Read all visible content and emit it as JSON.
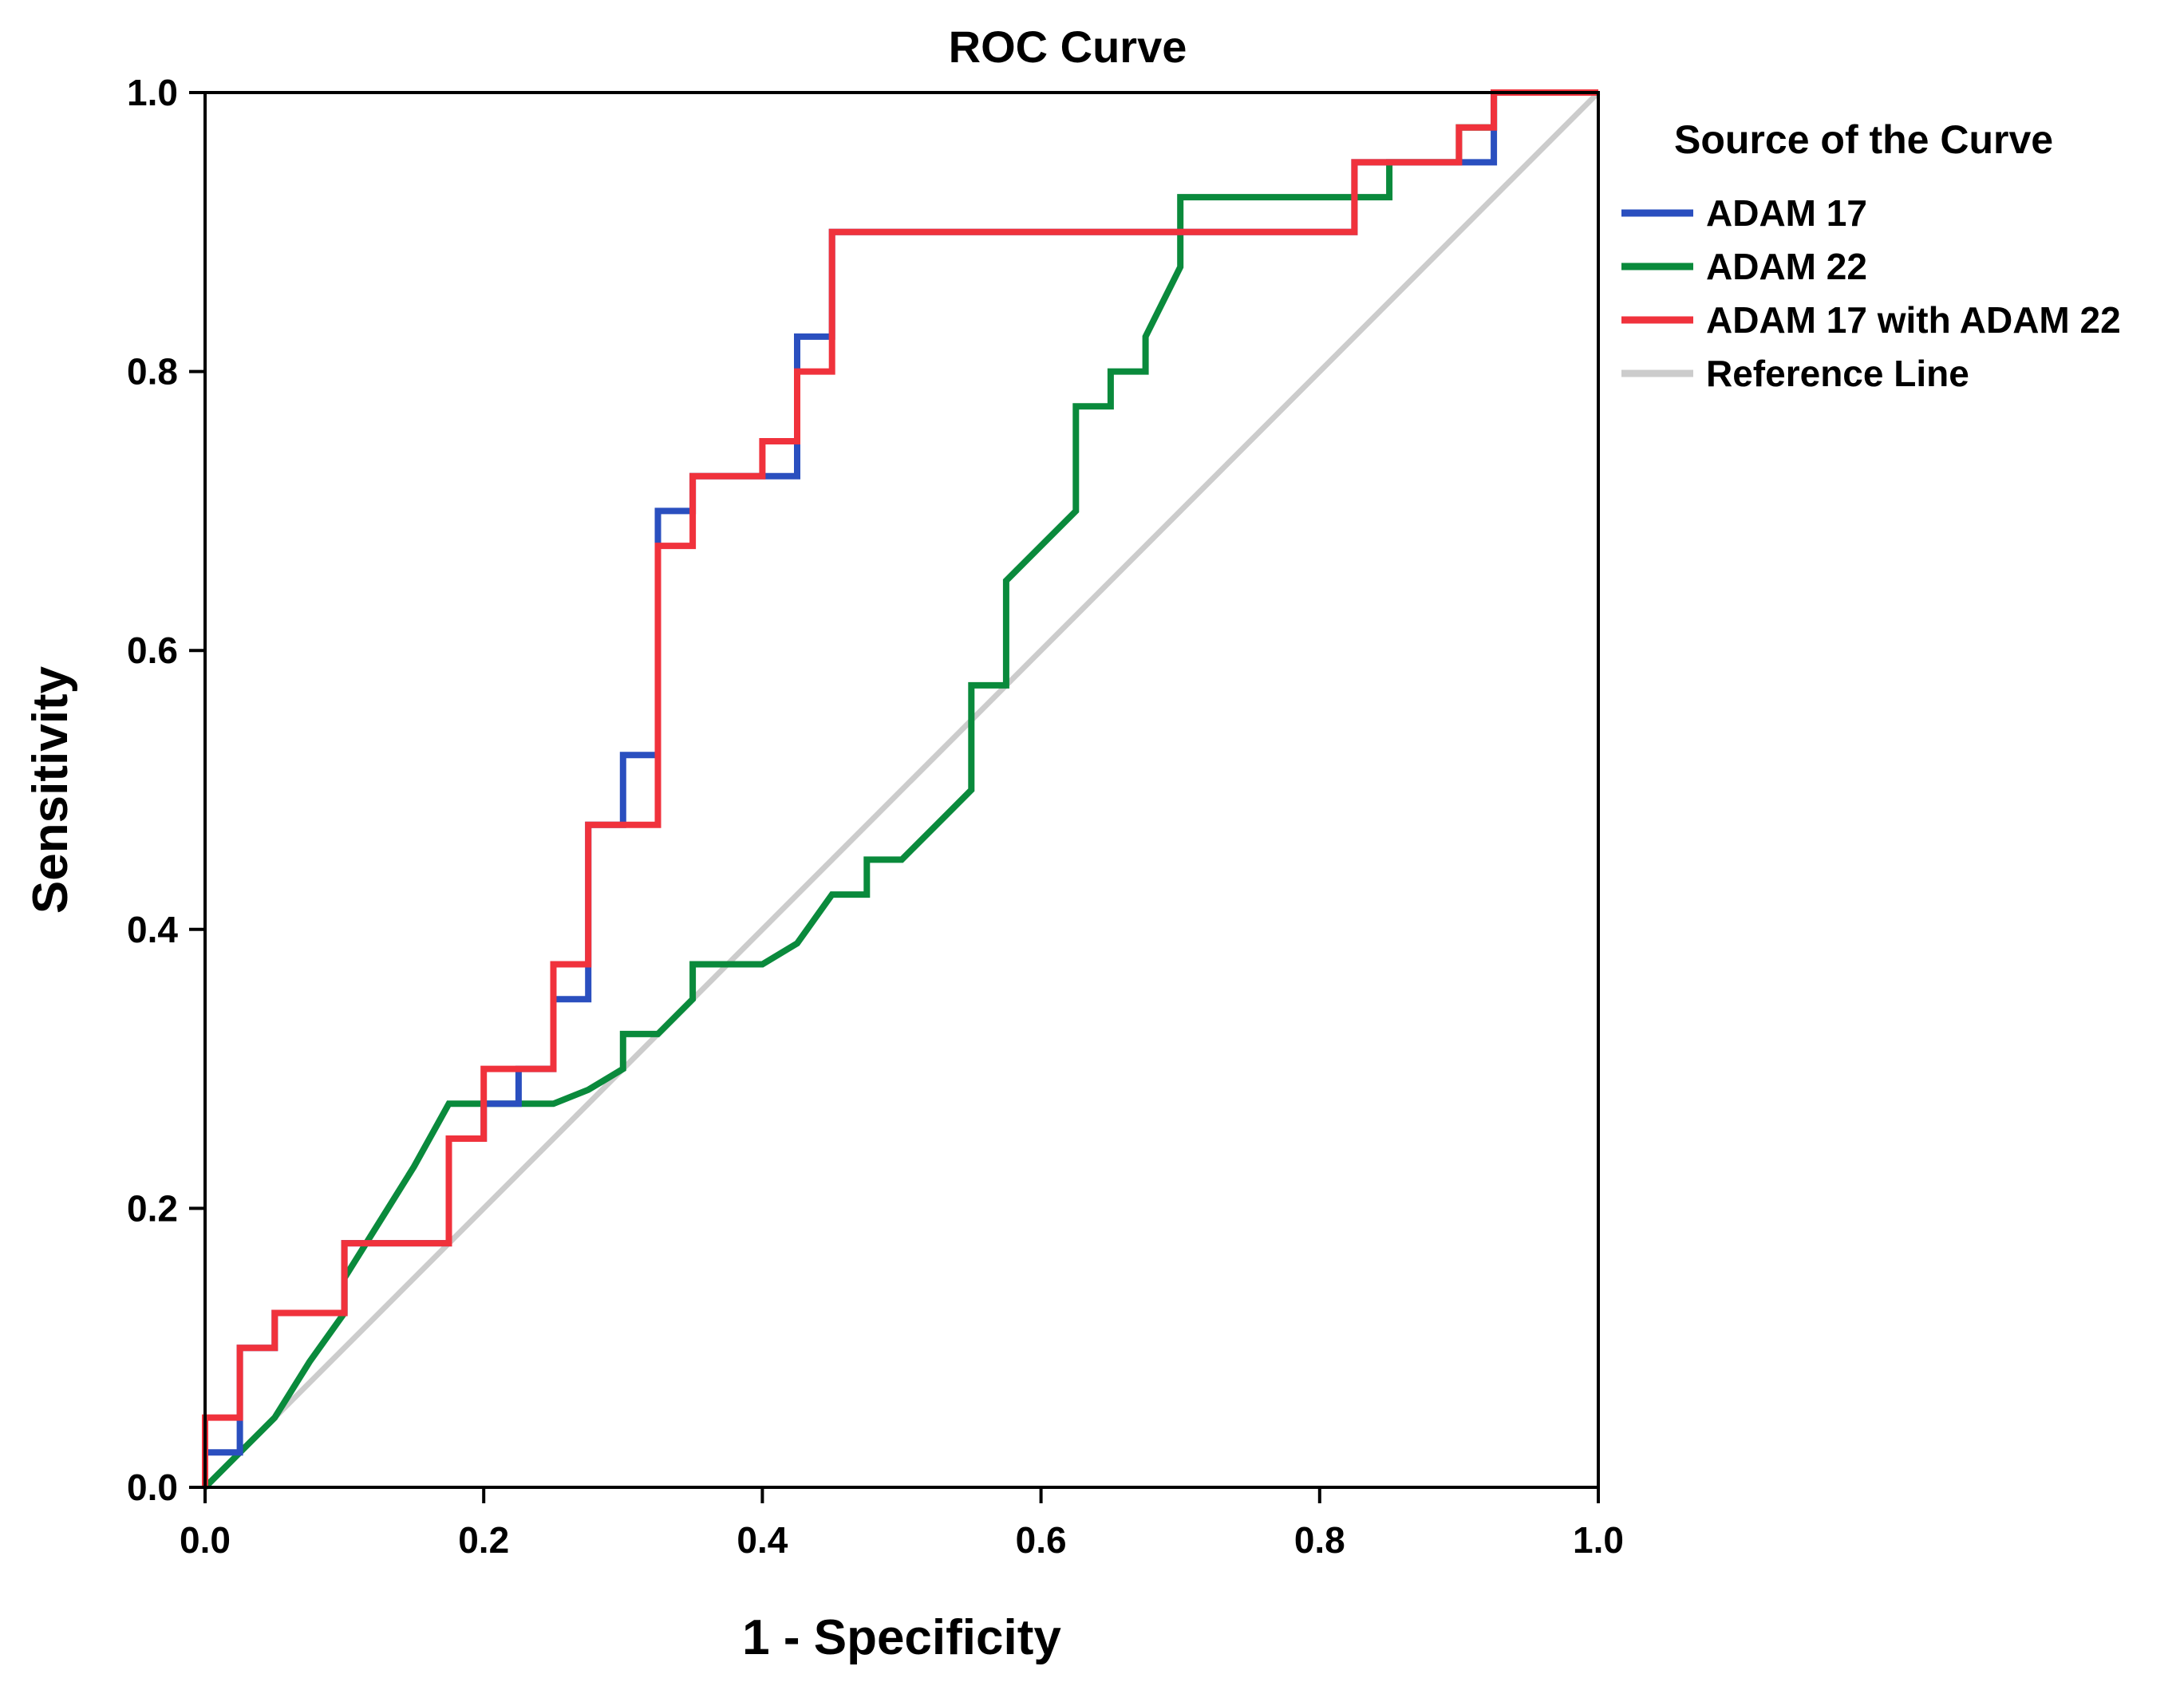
{
  "chart_data": {
    "type": "line",
    "title": "ROC Curve",
    "xlabel": "1 - Specificity",
    "ylabel": "Sensitivity",
    "xlim": [
      0,
      1
    ],
    "ylim": [
      0,
      1
    ],
    "x_ticks": [
      0.0,
      0.2,
      0.4,
      0.6,
      0.8,
      1.0
    ],
    "x_tick_labels": [
      "0.0",
      "0.2",
      "0.4",
      "0.6",
      "0.8",
      "1.0"
    ],
    "y_ticks": [
      0.0,
      0.2,
      0.4,
      0.6,
      0.8,
      1.0
    ],
    "y_tick_labels": [
      "0.0",
      "0.2",
      "0.4",
      "0.6",
      "0.8",
      "1.0"
    ],
    "grid": false,
    "legend": {
      "title": "Source of the Curve",
      "position": "right"
    },
    "series": [
      {
        "name": "Reference Line",
        "color": "#cccccc",
        "points": [
          [
            0,
            0
          ],
          [
            1,
            1
          ]
        ]
      },
      {
        "name": "ADAM 22",
        "color": "#0a8a3c",
        "points": [
          [
            0,
            0
          ],
          [
            0.025,
            0.025
          ],
          [
            0.05,
            0.05
          ],
          [
            0.075,
            0.09
          ],
          [
            0.1,
            0.125
          ],
          [
            0.1,
            0.15
          ],
          [
            0.125,
            0.19
          ],
          [
            0.15,
            0.23
          ],
          [
            0.175,
            0.275
          ],
          [
            0.2,
            0.275
          ],
          [
            0.225,
            0.275
          ],
          [
            0.25,
            0.275
          ],
          [
            0.275,
            0.285
          ],
          [
            0.3,
            0.3
          ],
          [
            0.3,
            0.325
          ],
          [
            0.325,
            0.325
          ],
          [
            0.35,
            0.35
          ],
          [
            0.35,
            0.375
          ],
          [
            0.375,
            0.375
          ],
          [
            0.4,
            0.375
          ],
          [
            0.425,
            0.39
          ],
          [
            0.45,
            0.425
          ],
          [
            0.475,
            0.425
          ],
          [
            0.475,
            0.45
          ],
          [
            0.5,
            0.45
          ],
          [
            0.525,
            0.475
          ],
          [
            0.55,
            0.5
          ],
          [
            0.55,
            0.575
          ],
          [
            0.575,
            0.575
          ],
          [
            0.575,
            0.65
          ],
          [
            0.6,
            0.675
          ],
          [
            0.625,
            0.7
          ],
          [
            0.625,
            0.775
          ],
          [
            0.65,
            0.775
          ],
          [
            0.65,
            0.8
          ],
          [
            0.675,
            0.8
          ],
          [
            0.675,
            0.825
          ],
          [
            0.7,
            0.875
          ],
          [
            0.7,
            0.925
          ],
          [
            0.725,
            0.925
          ],
          [
            0.85,
            0.925
          ],
          [
            0.85,
            0.95
          ],
          [
            0.9,
            0.95
          ],
          [
            0.9,
            0.975
          ],
          [
            0.925,
            0.975
          ],
          [
            0.925,
            1.0
          ],
          [
            1.0,
            1.0
          ]
        ]
      },
      {
        "name": "ADAM 17",
        "color": "#2a4fbf",
        "points": [
          [
            0,
            0
          ],
          [
            0,
            0.025
          ],
          [
            0.025,
            0.025
          ],
          [
            0.025,
            0.1
          ],
          [
            0.05,
            0.1
          ],
          [
            0.05,
            0.125
          ],
          [
            0.1,
            0.125
          ],
          [
            0.1,
            0.175
          ],
          [
            0.175,
            0.175
          ],
          [
            0.175,
            0.25
          ],
          [
            0.2,
            0.25
          ],
          [
            0.2,
            0.275
          ],
          [
            0.225,
            0.275
          ],
          [
            0.225,
            0.3
          ],
          [
            0.25,
            0.3
          ],
          [
            0.25,
            0.35
          ],
          [
            0.275,
            0.35
          ],
          [
            0.275,
            0.475
          ],
          [
            0.3,
            0.475
          ],
          [
            0.3,
            0.525
          ],
          [
            0.325,
            0.525
          ],
          [
            0.325,
            0.7
          ],
          [
            0.35,
            0.7
          ],
          [
            0.35,
            0.725
          ],
          [
            0.4,
            0.725
          ],
          [
            0.425,
            0.725
          ],
          [
            0.425,
            0.825
          ],
          [
            0.45,
            0.825
          ],
          [
            0.45,
            0.9
          ],
          [
            0.825,
            0.9
          ],
          [
            0.825,
            0.95
          ],
          [
            0.9,
            0.95
          ],
          [
            0.925,
            0.95
          ],
          [
            0.925,
            1.0
          ],
          [
            1.0,
            1.0
          ]
        ]
      },
      {
        "name": "ADAM 17 with ADAM 22",
        "color": "#f0323c",
        "points": [
          [
            0,
            0
          ],
          [
            0,
            0.05
          ],
          [
            0.025,
            0.05
          ],
          [
            0.025,
            0.1
          ],
          [
            0.05,
            0.1
          ],
          [
            0.05,
            0.125
          ],
          [
            0.1,
            0.125
          ],
          [
            0.1,
            0.175
          ],
          [
            0.175,
            0.175
          ],
          [
            0.175,
            0.25
          ],
          [
            0.2,
            0.25
          ],
          [
            0.2,
            0.3
          ],
          [
            0.25,
            0.3
          ],
          [
            0.25,
            0.375
          ],
          [
            0.275,
            0.375
          ],
          [
            0.275,
            0.475
          ],
          [
            0.325,
            0.475
          ],
          [
            0.325,
            0.675
          ],
          [
            0.35,
            0.675
          ],
          [
            0.35,
            0.725
          ],
          [
            0.4,
            0.725
          ],
          [
            0.4,
            0.75
          ],
          [
            0.425,
            0.75
          ],
          [
            0.425,
            0.8
          ],
          [
            0.45,
            0.8
          ],
          [
            0.45,
            0.9
          ],
          [
            0.825,
            0.9
          ],
          [
            0.825,
            0.95
          ],
          [
            0.9,
            0.95
          ],
          [
            0.9,
            0.975
          ],
          [
            0.925,
            0.975
          ],
          [
            0.925,
            1.0
          ],
          [
            1.0,
            1.0
          ]
        ]
      }
    ],
    "legend_order": [
      "ADAM 17",
      "ADAM 22",
      "ADAM 17 with ADAM 22",
      "Reference Line"
    ]
  }
}
